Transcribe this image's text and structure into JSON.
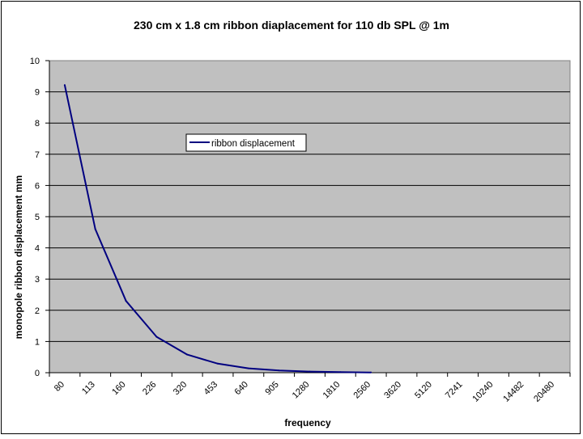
{
  "chart_data": {
    "type": "line",
    "title": "230 cm x 1.8 cm  ribbon diaplacement for 110 db SPL @ 1m",
    "xlabel": "frequency",
    "ylabel": "monopole ribbon displacement  mm",
    "categories": [
      "80",
      "113",
      "160",
      "226",
      "320",
      "453",
      "640",
      "905",
      "1280",
      "1810",
      "2560",
      "3620",
      "5120",
      "7241",
      "10240",
      "14482",
      "20480"
    ],
    "series": [
      {
        "name": "ribbon displacement",
        "color": "#000080",
        "values": [
          9.22,
          4.6,
          2.3,
          1.15,
          0.58,
          0.29,
          0.14,
          0.07,
          0.036,
          0.018,
          0.009,
          null,
          null,
          null,
          null,
          null,
          null
        ]
      }
    ],
    "ylim": [
      0,
      10
    ],
    "yticks": [
      "0",
      "1",
      "2",
      "3",
      "4",
      "5",
      "6",
      "7",
      "8",
      "9",
      "10"
    ],
    "grid": "horizontal",
    "plot_background": "#c0c0c0",
    "legend_position": "inside-upper-middle"
  }
}
